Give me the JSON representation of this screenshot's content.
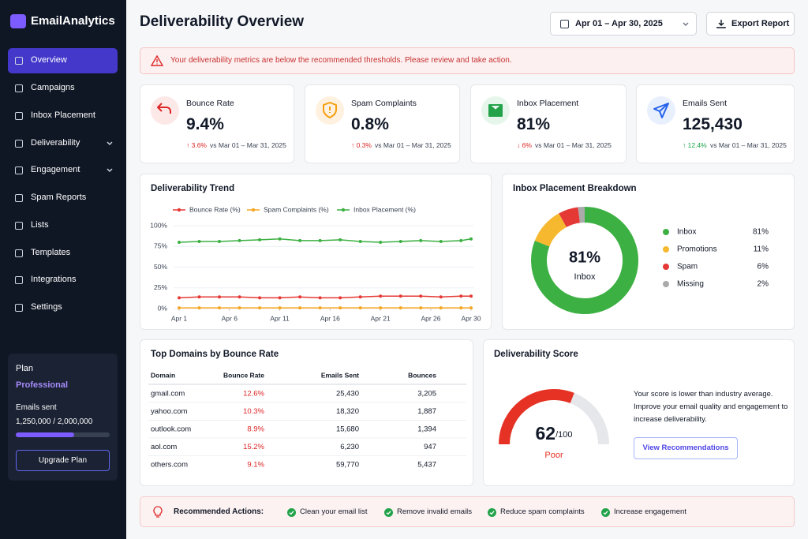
{
  "sidebar": {
    "brand": "EmailAnalytics",
    "nav": [
      {
        "label": "Overview",
        "active": true
      },
      {
        "label": "Campaigns"
      },
      {
        "label": "Inbox Placement"
      },
      {
        "label": "Deliverability",
        "submenu": true
      },
      {
        "label": "Engagement",
        "submenu": true
      },
      {
        "label": "Spam Reports"
      },
      {
        "label": "Lists"
      },
      {
        "label": "Templates"
      },
      {
        "label": "Integrations"
      },
      {
        "label": "Settings"
      }
    ],
    "plan": {
      "title": "Plan",
      "name": "Professional",
      "usage_title": "Emails sent",
      "usage_text": "1,250,000 / 2,000,000",
      "used": 1250000,
      "limit": 2000000,
      "button": "Upgrade Plan"
    }
  },
  "header": {
    "title": "Deliverability Overview",
    "date_range": "Apr 01 – Apr 30, 2025",
    "export": "Export Report"
  },
  "alert": "Your deliverability metrics are below the recommended thresholds. Please review and take action.",
  "kpis": [
    {
      "label": "Bounce Rate",
      "value": "9.4%",
      "change": "↑ 3.6%",
      "change_color": "#dc2626",
      "period": "vs Mar 01 – Mar 31, 2025",
      "icon_color": "#dc2626",
      "icon_bg": "#fde8e8"
    },
    {
      "label": "Spam Complaints",
      "value": "0.8%",
      "change": "↑ 0.3%",
      "change_color": "#dc2626",
      "period": "vs Mar 01 – Mar 31, 2025",
      "icon_color": "#f59e0b",
      "icon_bg": "#fff1e0"
    },
    {
      "label": "Inbox Placement",
      "value": "81%",
      "change": "↓ 6%",
      "change_color": "#dc2626",
      "period": "vs Mar 01 – Mar 31, 2025",
      "icon_color": "#22a34a",
      "icon_bg": "#e6f6ea"
    },
    {
      "label": "Emails Sent",
      "value": "125,430",
      "change": "↑ 12.4%",
      "change_color": "#16a34a",
      "period": "vs Mar 01 – Mar 31, 2025",
      "icon_color": "#2563eb",
      "icon_bg": "#e8f0fe"
    }
  ],
  "trend_chart": {
    "type": "line",
    "title": "Deliverability Trend",
    "x": [
      1,
      3,
      5,
      7,
      9,
      11,
      13,
      15,
      17,
      19,
      21,
      23,
      25,
      27,
      29,
      30
    ],
    "xlim": [
      1,
      30
    ],
    "xticks": [
      {
        "value": 1,
        "label": "Apr 1"
      },
      {
        "value": 6,
        "label": "Apr 6"
      },
      {
        "value": 11,
        "label": "Apr 11"
      },
      {
        "value": 16,
        "label": "Apr 16"
      },
      {
        "value": 21,
        "label": "Apr 21"
      },
      {
        "value": 26,
        "label": "Apr 26"
      },
      {
        "value": 30,
        "label": "Apr 30"
      }
    ],
    "ylim": [
      0,
      100
    ],
    "yticks": [
      {
        "value": 0,
        "label": "0%"
      },
      {
        "value": 25,
        "label": "25%"
      },
      {
        "value": 50,
        "label": "50%"
      },
      {
        "value": 75,
        "label": "75%"
      },
      {
        "value": 100,
        "label": "100%"
      }
    ],
    "grid": true,
    "series": [
      {
        "name": "Bounce Rate (%)",
        "color": "#e53935",
        "values": [
          13,
          14,
          14,
          14,
          13,
          13,
          14,
          13,
          13,
          14,
          15,
          15,
          15,
          14,
          15,
          15
        ]
      },
      {
        "name": "Spam Complaints (%)",
        "color": "#f5a623",
        "values": [
          0.8,
          0.8,
          0.8,
          0.8,
          0.8,
          0.8,
          0.8,
          0.8,
          0.8,
          0.8,
          0.8,
          0.8,
          0.8,
          0.8,
          0.8,
          0.8
        ]
      },
      {
        "name": "Inbox Placement (%)",
        "color": "#3cb043",
        "values": [
          80,
          81,
          81,
          82,
          83,
          84,
          82,
          82,
          83,
          81,
          80,
          81,
          82,
          81,
          82,
          84
        ]
      }
    ]
  },
  "placement_chart": {
    "type": "donut",
    "title": "Inbox Placement Breakdown",
    "center_value": "81%",
    "center_label": "Inbox",
    "categories": [
      "Inbox",
      "Promotions",
      "Spam",
      "Missing"
    ],
    "values": [
      81,
      11,
      6,
      2
    ],
    "value_labels": [
      "81%",
      "11%",
      "6%",
      "2%"
    ],
    "colors": [
      "#3cb043",
      "#f5b82e",
      "#e53935",
      "#aaaaaa"
    ]
  },
  "domains_table": {
    "title": "Top Domains by Bounce Rate",
    "columns": [
      "Domain",
      "Bounce Rate",
      "Emails Sent",
      "Bounces"
    ],
    "rows": [
      [
        "gmail.com",
        "12.6%",
        "25,430",
        "3,205"
      ],
      [
        "yahoo.com",
        "10.3%",
        "18,320",
        "1,887"
      ],
      [
        "outlook.com",
        "8.9%",
        "15,680",
        "1,394"
      ],
      [
        "aol.com",
        "15.2%",
        "6,230",
        "947"
      ],
      [
        "others.com",
        "9.1%",
        "59,770",
        "5,437"
      ]
    ]
  },
  "score": {
    "type": "gauge",
    "title": "Deliverability Score",
    "value": 62,
    "max": 100,
    "max_label": "/100",
    "rating": "Poor",
    "color": "#e53224",
    "description": "Your score is lower than industry average. Improve your email quality and engagement to increase deliverability.",
    "button": "View Recommendations"
  },
  "actions": {
    "title": "Recommended Actions:",
    "items": [
      "Clean your email list",
      "Remove invalid emails",
      "Reduce spam complaints",
      "Increase engagement"
    ]
  }
}
